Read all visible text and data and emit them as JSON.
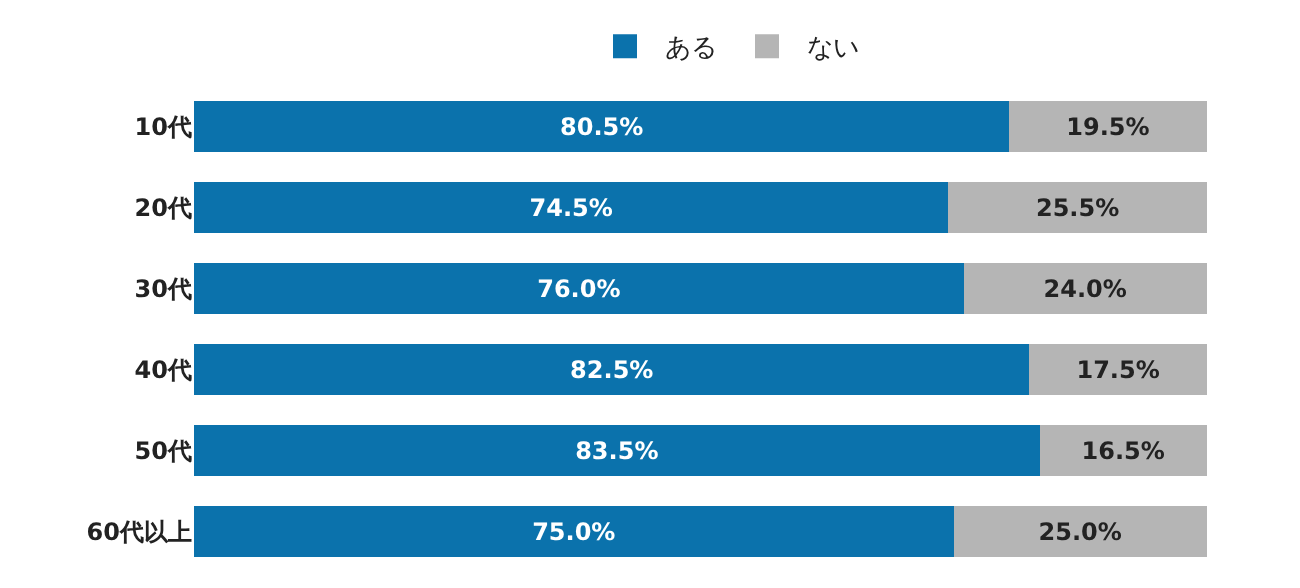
{
  "chart_data": {
    "type": "bar",
    "orientation": "horizontal",
    "stacked": true,
    "legend": "top",
    "categories": [
      "10代",
      "20代",
      "30代",
      "40代",
      "50代",
      "60代以上"
    ],
    "series": [
      {
        "name": "ある",
        "color": "#0b72ac",
        "values": [
          80.5,
          74.5,
          76.0,
          82.5,
          83.5,
          75.0
        ],
        "value_labels": [
          "80.5%",
          "74.5%",
          "76.0%",
          "82.5%",
          "83.5%",
          "75.0%"
        ]
      },
      {
        "name": "ない",
        "color": "#b5b5b5",
        "values": [
          19.5,
          25.5,
          24.0,
          17.5,
          16.5,
          25.0
        ],
        "value_labels": [
          "19.5%",
          "25.5%",
          "24.0%",
          "17.5%",
          "16.5%",
          "25.0%"
        ]
      }
    ]
  }
}
